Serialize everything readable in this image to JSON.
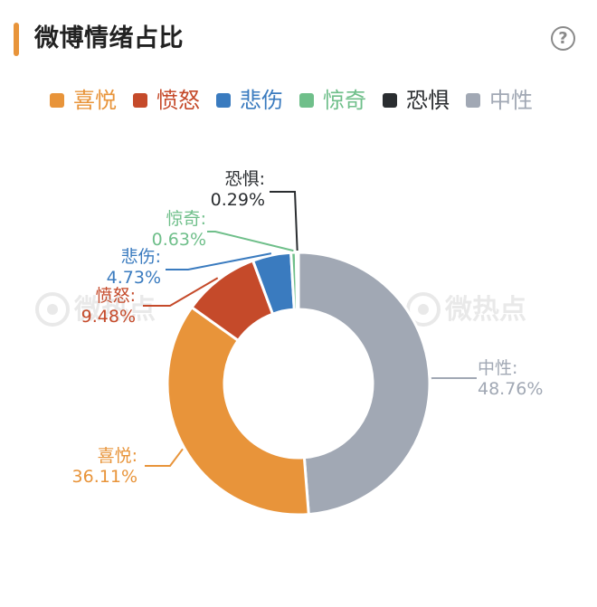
{
  "header": {
    "title": "微博情绪占比",
    "help_label": "?"
  },
  "colors": {
    "accent": "#e8943a",
    "喜悦": "#e8943a",
    "愤怒": "#c54a2a",
    "悲伤": "#3a7bbf",
    "惊奇": "#6fbf8a",
    "恐惧": "#2a2d30",
    "中性": "#a1a8b4"
  },
  "watermark": "微热点",
  "chart_data": {
    "type": "pie",
    "style": "donut",
    "legend_position": "top",
    "legend": [
      "喜悦",
      "愤怒",
      "悲伤",
      "惊奇",
      "恐惧",
      "中性"
    ],
    "slices": [
      {
        "name": "中性",
        "value": 48.76,
        "label": "中性:",
        "pct_label": "48.76%",
        "color": "#a1a8b4"
      },
      {
        "name": "喜悦",
        "value": 36.11,
        "label": "喜悦:",
        "pct_label": "36.11%",
        "color": "#e8943a"
      },
      {
        "name": "愤怒",
        "value": 9.48,
        "label": "愤怒:",
        "pct_label": "9.48%",
        "color": "#c54a2a"
      },
      {
        "name": "悲伤",
        "value": 4.73,
        "label": "悲伤:",
        "pct_label": "4.73%",
        "color": "#3a7bbf"
      },
      {
        "name": "惊奇",
        "value": 0.63,
        "label": "惊奇:",
        "pct_label": "0.63%",
        "color": "#6fbf8a"
      },
      {
        "name": "恐惧",
        "value": 0.29,
        "label": "恐惧:",
        "pct_label": "0.29%",
        "color": "#2a2d30"
      }
    ]
  }
}
